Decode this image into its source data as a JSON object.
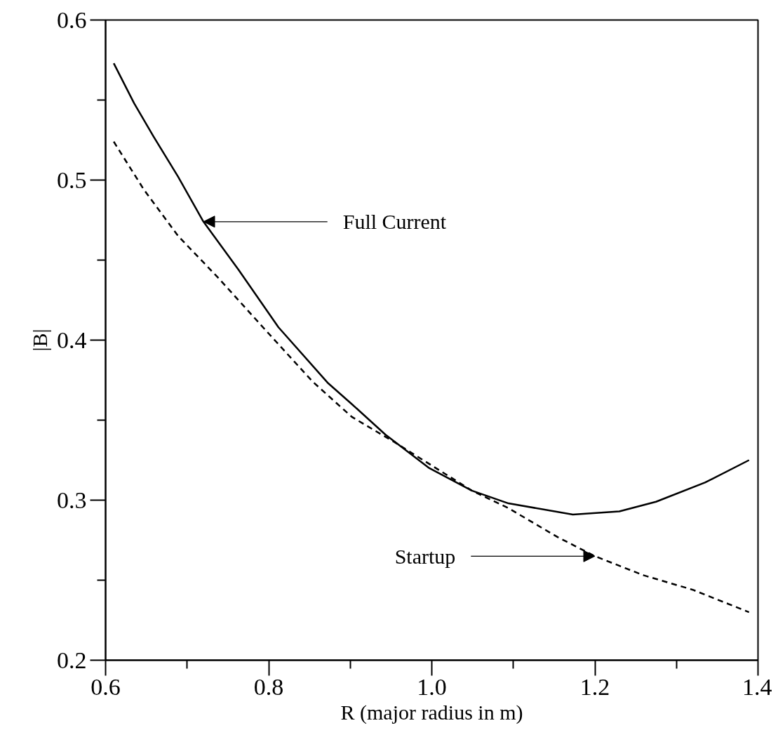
{
  "chart_data": {
    "type": "line",
    "xlabel": "R (major radius in m)",
    "ylabel": "|B|",
    "xlim": [
      0.6,
      1.4
    ],
    "ylim": [
      0.2,
      0.6
    ],
    "xticks": [
      {
        "value": 0.6,
        "label": "0.6"
      },
      {
        "value": 0.7,
        "label": null
      },
      {
        "value": 0.8,
        "label": "0.8"
      },
      {
        "value": 0.9,
        "label": null
      },
      {
        "value": 1.0,
        "label": "1.0"
      },
      {
        "value": 1.1,
        "label": null
      },
      {
        "value": 1.2,
        "label": "1.2"
      },
      {
        "value": 1.3,
        "label": null
      },
      {
        "value": 1.4,
        "label": "1.4"
      }
    ],
    "yticks": [
      {
        "value": 0.2,
        "label": "0.2"
      },
      {
        "value": 0.25,
        "label": null
      },
      {
        "value": 0.3,
        "label": "0.3"
      },
      {
        "value": 0.35,
        "label": null
      },
      {
        "value": 0.4,
        "label": "0.4"
      },
      {
        "value": 0.45,
        "label": null
      },
      {
        "value": 0.5,
        "label": "0.5"
      },
      {
        "value": 0.55,
        "label": null
      },
      {
        "value": 0.6,
        "label": "0.6"
      }
    ],
    "grid": false,
    "marker": "none",
    "series": [
      {
        "color": "#000000",
        "line_style": "solid",
        "x": [
          0.61,
          0.635,
          0.659,
          0.689,
          0.72,
          0.763,
          0.812,
          0.873,
          0.902,
          0.943,
          0.997,
          1.049,
          1.094,
          1.173,
          1.23,
          1.275,
          1.335,
          1.389
        ],
        "values": [
          0.573,
          0.548,
          0.527,
          0.502,
          0.474,
          0.444,
          0.408,
          0.373,
          0.36,
          0.341,
          0.32,
          0.306,
          0.298,
          0.291,
          0.293,
          0.299,
          0.311,
          0.325
        ]
      },
      {
        "color": "#000000",
        "line_style": "dashed",
        "x": [
          0.61,
          0.647,
          0.689,
          0.738,
          0.793,
          0.854,
          0.902,
          0.955,
          1.049,
          1.094,
          1.154,
          1.2,
          1.26,
          1.32,
          1.389
        ],
        "values": [
          0.524,
          0.494,
          0.465,
          0.439,
          0.408,
          0.374,
          0.352,
          0.336,
          0.306,
          0.295,
          0.277,
          0.265,
          0.253,
          0.244,
          0.23
        ]
      }
    ],
    "annotations": [
      {
        "text": "Full Current",
        "x": 0.72,
        "y": 0.474
      },
      {
        "text": "Startup",
        "x": 1.2,
        "y": 0.265
      }
    ]
  }
}
